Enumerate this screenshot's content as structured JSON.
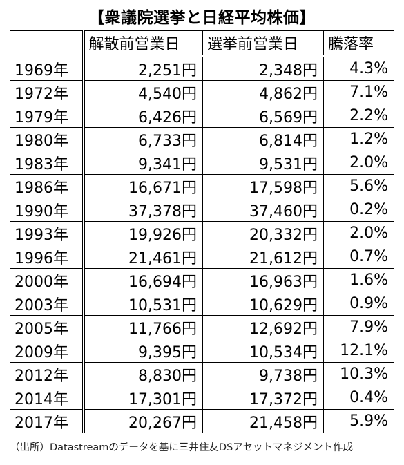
{
  "title": "【衆議院選挙と日経平均株価】",
  "chart_data": {
    "type": "table",
    "columns": [
      "",
      "解散前営業日",
      "選挙前営業日",
      "騰落率"
    ],
    "rows": [
      [
        "1969年",
        "2,251円",
        "2,348円",
        "4.3%"
      ],
      [
        "1972年",
        "4,540円",
        "4,862円",
        "7.1%"
      ],
      [
        "1979年",
        "6,426円",
        "6,569円",
        "2.2%"
      ],
      [
        "1980年",
        "6,733円",
        "6,814円",
        "1.2%"
      ],
      [
        "1983年",
        "9,341円",
        "9,531円",
        "2.0%"
      ],
      [
        "1986年",
        "16,671円",
        "17,598円",
        "5.6%"
      ],
      [
        "1990年",
        "37,378円",
        "37,460円",
        "0.2%"
      ],
      [
        "1993年",
        "19,926円",
        "20,332円",
        "2.0%"
      ],
      [
        "1996年",
        "21,461円",
        "21,612円",
        "0.7%"
      ],
      [
        "2000年",
        "16,694円",
        "16,963円",
        "1.6%"
      ],
      [
        "2003年",
        "10,531円",
        "10,629円",
        "0.9%"
      ],
      [
        "2005年",
        "11,766円",
        "12,692円",
        "7.9%"
      ],
      [
        "2009年",
        "9,395円",
        "10,534円",
        "12.1%"
      ],
      [
        "2012年",
        "8,830円",
        "9,738円",
        "10.3%"
      ],
      [
        "2014年",
        "17,301円",
        "17,372円",
        "0.4%"
      ],
      [
        "2017年",
        "20,267円",
        "21,458円",
        "5.9%"
      ]
    ]
  },
  "source": "（出所）Datastreamのデータを基に三井住友DSアセットマネジメント作成"
}
